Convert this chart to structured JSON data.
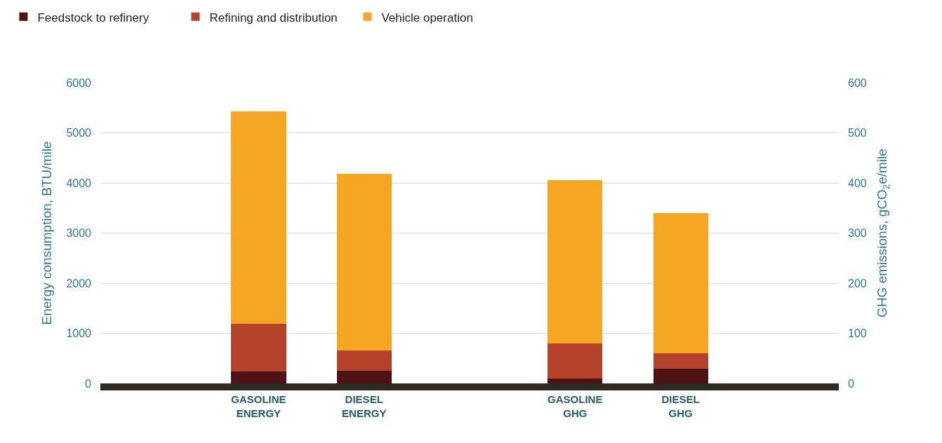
{
  "chart_data": {
    "type": "bar",
    "stacked": true,
    "ylabel": "Energy consumption, BTU/mile",
    "y2label": "GHG emissions, gCO$_{2}$e/mile",
    "categories": [
      null,
      "GASOLINE\nENERGY",
      "DIESEL\nENERGY",
      null,
      "GASOLINE\nGHG",
      "DIESEL\nGHG",
      null
    ],
    "series": [
      {
        "name": "Feedstock to refinery",
        "color": "#4f1213",
        "values": [
          null,
          240,
          250,
          null,
          null,
          null,
          null
        ]
      },
      {
        "name": "Refining and distribution",
        "color": "#b5432a",
        "values": [
          null,
          950,
          410,
          null,
          null,
          null,
          null
        ]
      },
      {
        "name": "Vehicle operation",
        "color": "#f5a623",
        "values": [
          null,
          4230,
          3520,
          null,
          null,
          null,
          null
        ]
      },
      {
        "color": "#4f1213",
        "axis": "y2",
        "values": [
          null,
          null,
          null,
          null,
          10,
          30,
          null
        ]
      },
      {
        "color": "#b5432a",
        "axis": "y2",
        "values": [
          null,
          null,
          null,
          null,
          70,
          30,
          null
        ]
      },
      {
        "color": "#f5a623",
        "axis": "y2",
        "values": [
          null,
          null,
          null,
          null,
          325,
          280,
          null
        ]
      }
    ],
    "ylim": [
      0,
      6000
    ],
    "yticks": [
      0,
      1000,
      2000,
      3000,
      4000,
      5000,
      6000
    ],
    "y2lim": [
      0,
      600
    ],
    "y2ticks": [
      0,
      100,
      200,
      300,
      400,
      500,
      600
    ],
    "grid": "y",
    "legend": "top left"
  }
}
